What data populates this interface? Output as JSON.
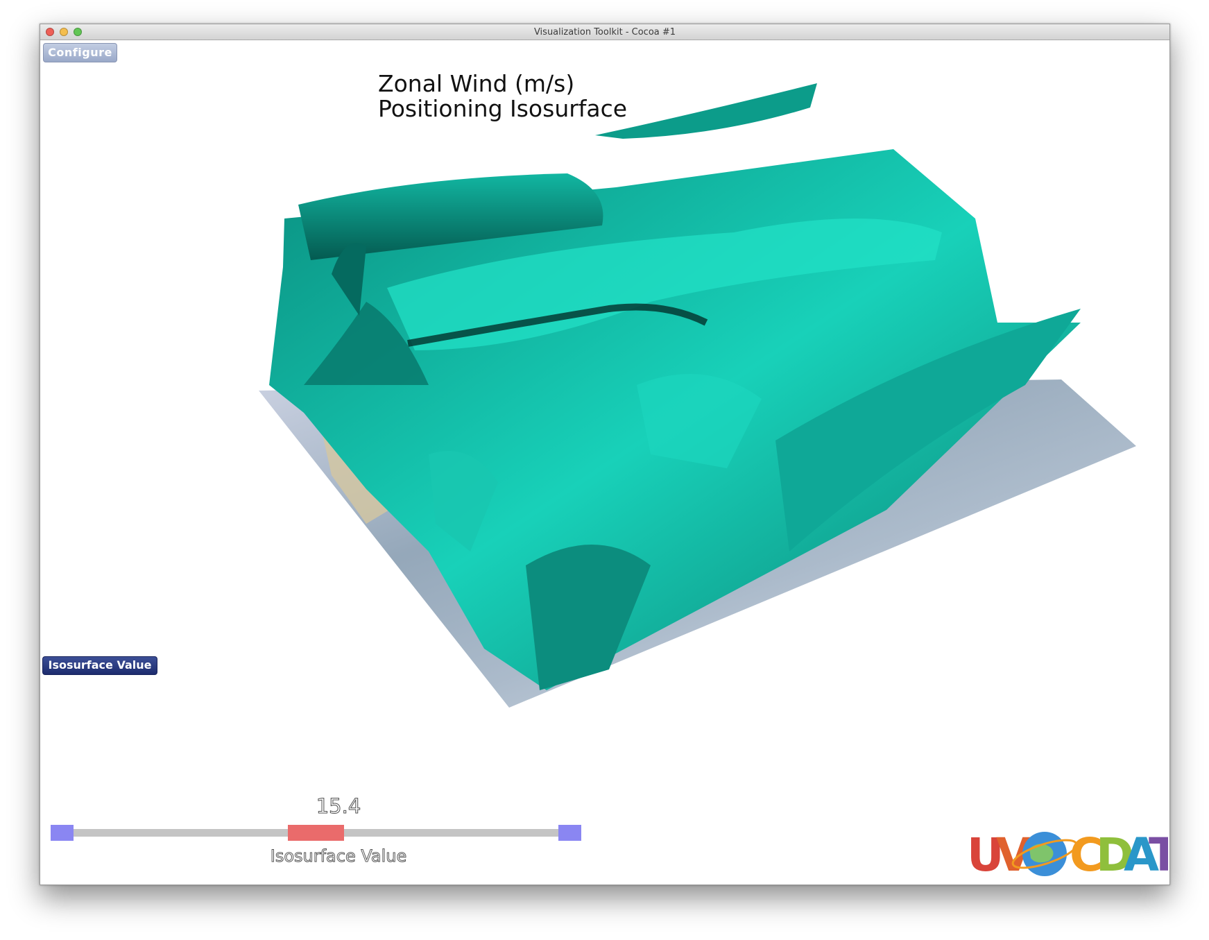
{
  "window": {
    "title": "Visualization Toolkit - Cocoa #1"
  },
  "toolbar": {
    "configure_label": "Configure"
  },
  "plot": {
    "title_line1": "Zonal Wind (m/s)",
    "title_line2": "Positioning Isosurface",
    "isosurface_color": "#16c4ac"
  },
  "controls": {
    "isosurface_button_label": "Isosurface Value"
  },
  "slider": {
    "value_label": "15.4",
    "label": "Isosurface Value",
    "position_fraction": 0.5
  },
  "logo": {
    "left_letters": "UV",
    "right_letters": "CDAT"
  },
  "colors": {
    "cap": "#8a86f2",
    "thumb": "#ea6b6b",
    "logo_u": "#d9443a",
    "logo_v": "#e0612d",
    "logo_c": "#f29a1f",
    "logo_d": "#8fbf3c",
    "logo_a": "#2a97c9",
    "logo_t": "#7a4fa3"
  }
}
